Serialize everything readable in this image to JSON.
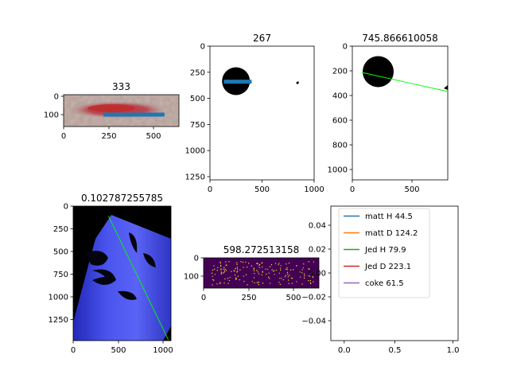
{
  "chart_data": [
    {
      "type": "image",
      "title": "333",
      "content": "wound photo with measurement line",
      "x_ticks": [
        "0",
        "250",
        "500"
      ],
      "y_ticks": [
        "0",
        "100"
      ],
      "xlim": [
        0,
        640
      ],
      "ylim": [
        160,
        0
      ],
      "line": {
        "x": [
          220,
          560
        ],
        "y": [
          100,
          100
        ],
        "color": "#1f77b4"
      }
    },
    {
      "type": "image",
      "title": "267",
      "content": "binary mask with black disk",
      "x_ticks": [
        "0",
        "500",
        "1000"
      ],
      "y_ticks": [
        "0",
        "250",
        "500",
        "750",
        "1000",
        "1250"
      ],
      "xlim": [
        0,
        1000
      ],
      "ylim": [
        1280,
        0
      ],
      "line": {
        "x": [
          133,
          400
        ],
        "y": [
          340,
          340
        ],
        "color": "#1f77b4"
      }
    },
    {
      "type": "image",
      "title": "745.866610058",
      "content": "binary mask with black disk",
      "x_ticks": [
        "0",
        "500"
      ],
      "y_ticks": [
        "0",
        "200",
        "400",
        "600",
        "800",
        "1000"
      ],
      "xlim": [
        0,
        800
      ],
      "ylim": [
        1120,
        0
      ],
      "line": {
        "x": [
          80,
          800
        ],
        "y": [
          220,
          380
        ],
        "color": "#00ff00"
      }
    },
    {
      "type": "image",
      "title": "0.102787255785",
      "content": "blue segmented can image on black background",
      "x_ticks": [
        "0",
        "500",
        "1000"
      ],
      "y_ticks": [
        "0",
        "250",
        "500",
        "750",
        "1000",
        "1250"
      ],
      "xlim": [
        0,
        1080
      ],
      "ylim": [
        1490,
        0
      ],
      "line": {
        "x": [
          390,
          1050
        ],
        "y": [
          110,
          1480
        ],
        "color": "#00ff00"
      }
    },
    {
      "type": "image",
      "title": "598.272513158",
      "content": "edge map, yellow speckles on purple",
      "x_ticks": [
        "0",
        "250",
        "500"
      ],
      "y_ticks": [
        "0",
        "100"
      ],
      "xlim": [
        0,
        640
      ],
      "ylim": [
        160,
        0
      ]
    },
    {
      "type": "line",
      "title": "",
      "x_ticks": [
        "0.0",
        "0.5",
        "1.0"
      ],
      "y_ticks": [
        "0.04",
        "0.02",
        "0.00",
        "−0.02",
        "−0.04"
      ],
      "xlim": [
        -0.05,
        1.05
      ],
      "ylim": [
        -0.055,
        0.055
      ],
      "legend_position": "upper-left",
      "series": [
        {
          "name": "matt H 44.5",
          "color": "#1f77b4"
        },
        {
          "name": "matt D 124.2",
          "color": "#ff7f0e"
        },
        {
          "name": "Jed H 79.9",
          "color": "#2ca02c"
        },
        {
          "name": "Jed D 223.1",
          "color": "#d62728"
        },
        {
          "name": "coke 61.5",
          "color": "#9467bd"
        }
      ]
    }
  ]
}
